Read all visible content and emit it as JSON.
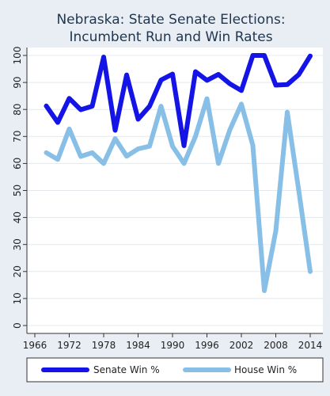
{
  "chart_data": {
    "type": "line",
    "title": [
      "Nebraska: State Senate Elections:",
      "Incumbent Run and Win Rates"
    ],
    "xlabel": "",
    "ylabel": "",
    "xlim": [
      1966,
      2014
    ],
    "ylim": [
      0,
      100
    ],
    "xticks": [
      1966,
      1972,
      1978,
      1984,
      1990,
      1996,
      2002,
      2008,
      2014
    ],
    "yticks": [
      0,
      10,
      20,
      30,
      40,
      50,
      60,
      70,
      80,
      90,
      100
    ],
    "grid": "horizontal",
    "legend_position": "bottom",
    "series": [
      {
        "name": "Senate Win %",
        "color": "#1414e6",
        "x": [
          1968,
          1970,
          1972,
          1974,
          1976,
          1978,
          1980,
          1982,
          1984,
          1986,
          1988,
          1990,
          1992,
          1994,
          1996,
          1998,
          2000,
          2002,
          2004,
          2006,
          2008,
          2010,
          2012,
          2014
        ],
        "values": [
          81.3,
          75.2,
          84.1,
          79.9,
          81.2,
          99.4,
          72.3,
          92.8,
          76.4,
          81.2,
          90.9,
          93.1,
          66.6,
          94.0,
          90.8,
          93.0,
          89.5,
          87.0,
          100.0,
          100.0,
          89.0,
          89.2,
          92.9,
          99.8
        ]
      },
      {
        "name": "House Win %",
        "color": "#87bfe6",
        "x": [
          1968,
          1970,
          1972,
          1974,
          1976,
          1978,
          1980,
          1982,
          1984,
          1986,
          1988,
          1990,
          1992,
          1994,
          1996,
          1998,
          2000,
          2002,
          2004,
          2006,
          2008,
          2010,
          2012,
          2014
        ],
        "values": [
          64.0,
          61.5,
          72.8,
          62.6,
          64.0,
          60.0,
          69.2,
          62.7,
          65.4,
          66.4,
          81.2,
          66.4,
          60.0,
          70.0,
          84.0,
          60.0,
          72.5,
          82.0,
          66.7,
          12.9,
          35.0,
          79.0,
          50.0,
          20.0
        ]
      }
    ]
  }
}
